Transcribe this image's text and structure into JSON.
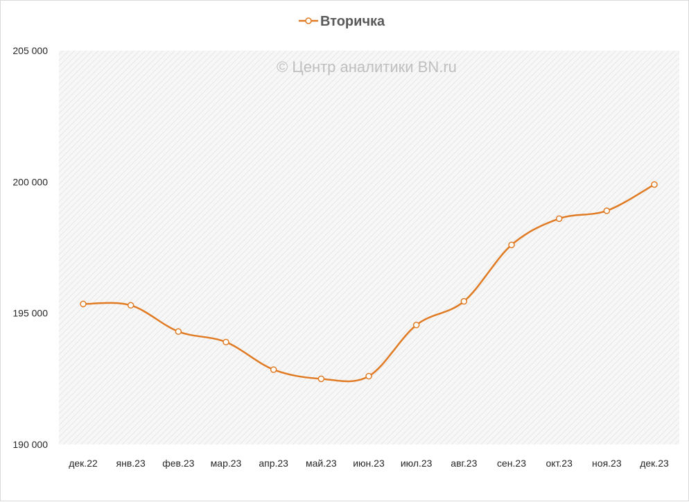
{
  "chart_data": {
    "type": "line",
    "legend": {
      "position": "top",
      "entries": [
        "Вторичка"
      ]
    },
    "watermark": "© Центр аналитики BN.ru",
    "categories": [
      "дек.22",
      "янв.23",
      "фев.23",
      "мар.23",
      "апр.23",
      "май.23",
      "июн.23",
      "июл.23",
      "авг.23",
      "сен.23",
      "окт.23",
      "ноя.23",
      "дек.23"
    ],
    "series": [
      {
        "name": "Вторичка",
        "color": "#e07b24",
        "values": [
          195350,
          195300,
          194300,
          193900,
          192850,
          192500,
          192600,
          194550,
          195450,
          197600,
          198600,
          198900,
          199900
        ],
        "marker": "open-circle",
        "smooth": true
      }
    ],
    "yticks": [
      "190 000",
      "195 000",
      "200 000",
      "205 000"
    ],
    "ylim": [
      190000,
      205000
    ],
    "grid": false,
    "plot_background": "hatched-light-gray"
  }
}
